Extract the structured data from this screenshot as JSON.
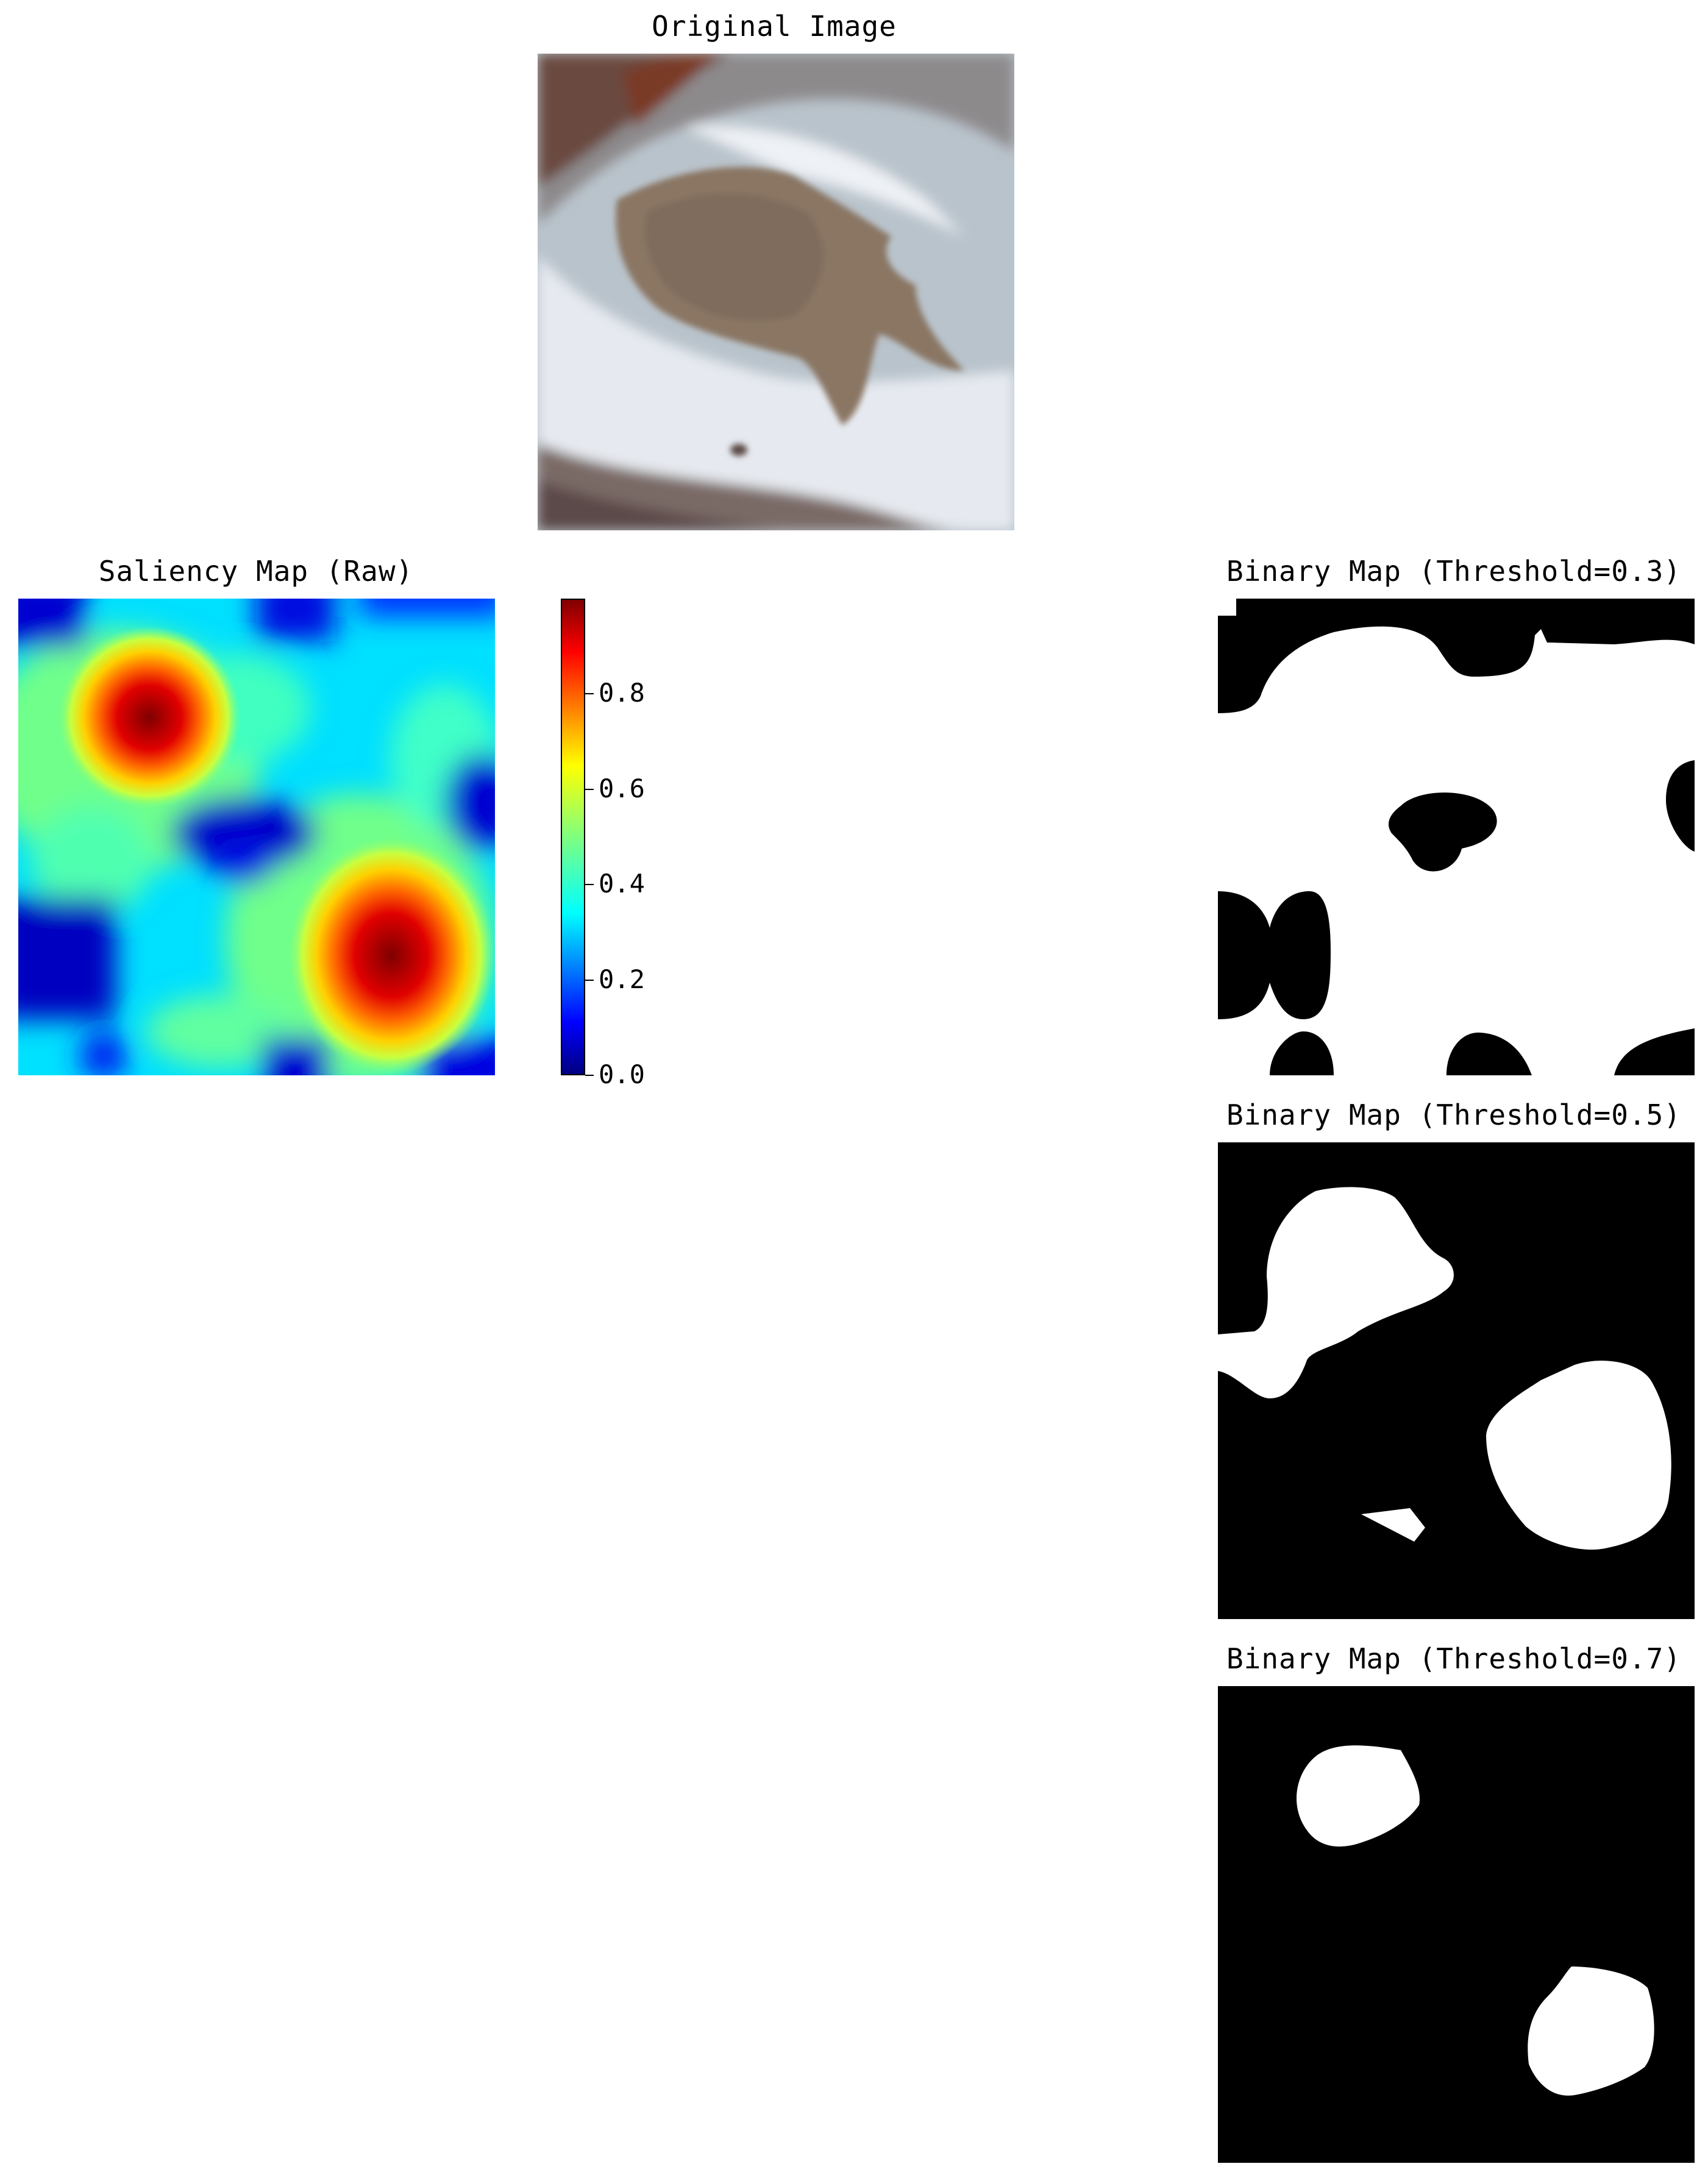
{
  "panels": {
    "original": {
      "title": "Original Image"
    },
    "saliency": {
      "title": "Saliency Map (Raw)"
    },
    "binary_03": {
      "title": "Binary Map (Threshold=0.3)"
    },
    "binary_05": {
      "title": "Binary Map (Threshold=0.5)"
    },
    "binary_07": {
      "title": "Binary Map (Threshold=0.7)"
    }
  },
  "colorbar": {
    "colormap": "jet",
    "range": [
      0.0,
      1.0
    ],
    "ticks": [
      "0.0",
      "0.2",
      "0.4",
      "0.6",
      "0.8"
    ]
  },
  "colors": {
    "jet_dark_red": "#7f0000",
    "jet_red": "#ff0000",
    "jet_yellow": "#ffff00",
    "jet_green": "#7fff7f",
    "jet_cyan": "#00ffff",
    "jet_blue": "#0000ff",
    "jet_navy": "#00007f"
  }
}
